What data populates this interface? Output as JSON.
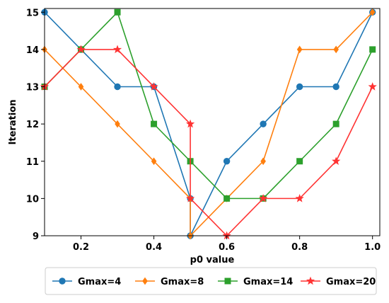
{
  "chart_data": {
    "type": "line",
    "title": "",
    "xlabel": "p0 value",
    "ylabel": "Iteration",
    "xlim": [
      0.1,
      1.02
    ],
    "ylim": [
      9,
      15.1
    ],
    "xticks": [
      0.2,
      0.4,
      0.6,
      0.8,
      1.0
    ],
    "xtick_labels": [
      "0.2",
      "0.4",
      "0.6",
      "0.8",
      "1.0"
    ],
    "yticks": [
      9,
      10,
      11,
      12,
      13,
      14,
      15
    ],
    "ytick_labels": [
      "9",
      "10",
      "11",
      "12",
      "13",
      "14",
      "15"
    ],
    "grid": false,
    "legend_position": "bottom",
    "series": [
      {
        "name": "Gmax=4",
        "color": "#1f77b4",
        "marker": "circle",
        "points": [
          [
            0.1,
            15
          ],
          [
            0.2,
            14
          ],
          [
            0.3,
            13
          ],
          [
            0.4,
            13
          ],
          [
            0.5,
            10
          ],
          [
            0.5,
            9
          ],
          [
            0.6,
            11
          ],
          [
            0.7,
            12
          ],
          [
            0.8,
            13
          ],
          [
            0.9,
            13
          ],
          [
            1.0,
            15
          ]
        ]
      },
      {
        "name": "Gmax=8",
        "color": "#ff7f0e",
        "marker": "diamond",
        "points": [
          [
            0.1,
            14
          ],
          [
            0.2,
            13
          ],
          [
            0.3,
            12
          ],
          [
            0.4,
            11
          ],
          [
            0.5,
            10
          ],
          [
            0.5,
            9
          ],
          [
            0.6,
            10
          ],
          [
            0.7,
            11
          ],
          [
            0.8,
            14
          ],
          [
            0.9,
            14
          ],
          [
            1.0,
            15
          ]
        ]
      },
      {
        "name": "Gmax=14",
        "color": "#2ca02c",
        "marker": "square",
        "points": [
          [
            0.1,
            13
          ],
          [
            0.2,
            14
          ],
          [
            0.3,
            15
          ],
          [
            0.4,
            12
          ],
          [
            0.5,
            11
          ],
          [
            0.6,
            10
          ],
          [
            0.7,
            10
          ],
          [
            0.8,
            11
          ],
          [
            0.9,
            12
          ],
          [
            1.0,
            14
          ]
        ]
      },
      {
        "name": "Gmax=20",
        "color": "#ff3333",
        "marker": "star",
        "points": [
          [
            0.1,
            13
          ],
          [
            0.2,
            14
          ],
          [
            0.3,
            14
          ],
          [
            0.4,
            13
          ],
          [
            0.5,
            12
          ],
          [
            0.5,
            10
          ],
          [
            0.6,
            9
          ],
          [
            0.7,
            10
          ],
          [
            0.8,
            10
          ],
          [
            0.9,
            11
          ],
          [
            1.0,
            13
          ]
        ]
      }
    ]
  }
}
